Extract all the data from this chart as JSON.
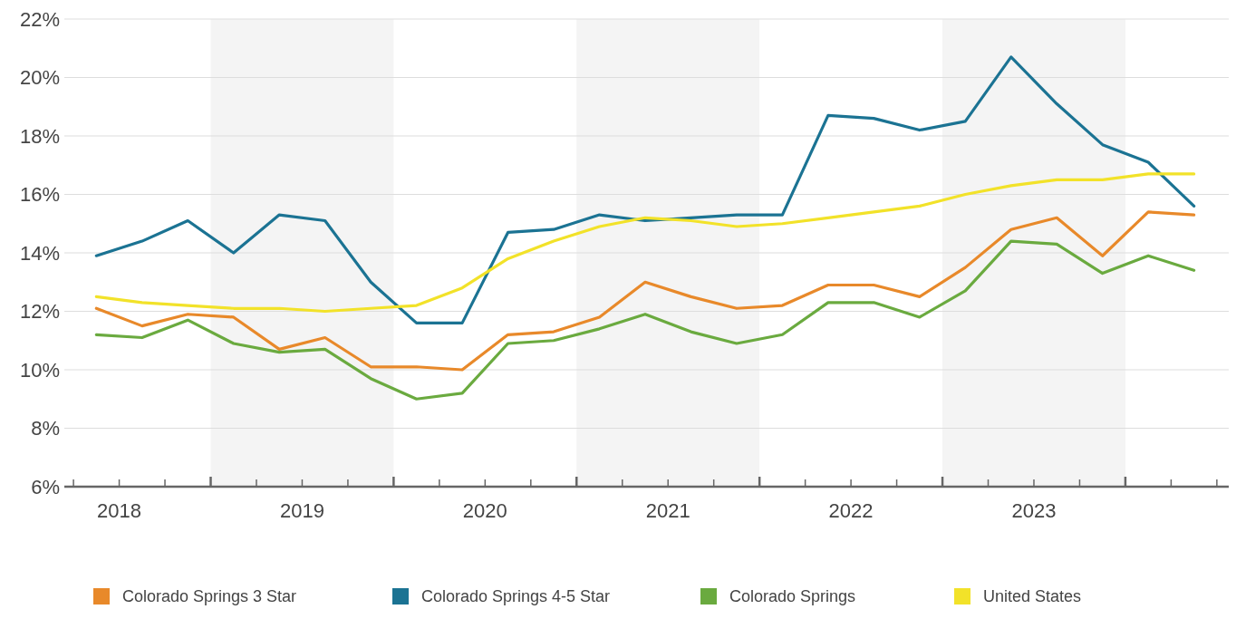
{
  "chart_data": {
    "type": "line",
    "x": [
      2018.375,
      2018.625,
      2018.875,
      2019.125,
      2019.375,
      2019.625,
      2019.875,
      2020.125,
      2020.375,
      2020.625,
      2020.875,
      2021.125,
      2021.375,
      2021.625,
      2021.875,
      2022.125,
      2022.375,
      2022.625,
      2022.875,
      2023.125,
      2023.375,
      2023.625,
      2023.875,
      2024.125,
      2024.375
    ],
    "series": [
      {
        "name": "Colorado Springs 3 Star",
        "color": "#e8892a",
        "values": [
          12.1,
          11.5,
          11.9,
          11.8,
          10.7,
          11.1,
          10.1,
          10.1,
          10.0,
          11.2,
          11.3,
          11.8,
          13.0,
          12.5,
          12.1,
          12.2,
          12.9,
          12.9,
          12.5,
          13.5,
          14.8,
          15.2,
          13.9,
          15.4,
          15.3
        ]
      },
      {
        "name": "Colorado Springs 4-5 Star",
        "color": "#1b7393",
        "values": [
          13.9,
          14.4,
          15.1,
          14.0,
          15.3,
          15.1,
          13.0,
          11.6,
          11.6,
          14.7,
          14.8,
          15.3,
          15.1,
          15.2,
          15.3,
          15.3,
          18.7,
          18.6,
          18.2,
          18.5,
          20.7,
          19.1,
          17.7,
          17.1,
          15.6
        ]
      },
      {
        "name": "Colorado Springs",
        "color": "#6aaa3f",
        "values": [
          11.2,
          11.1,
          11.7,
          10.9,
          10.6,
          10.7,
          9.7,
          9.0,
          9.2,
          10.9,
          11.0,
          11.4,
          11.9,
          11.3,
          10.9,
          11.2,
          12.3,
          12.3,
          11.8,
          12.7,
          14.4,
          14.3,
          13.3,
          13.9,
          13.4
        ]
      },
      {
        "name": "United States",
        "color": "#f2e229",
        "values": [
          12.5,
          12.3,
          12.2,
          12.1,
          12.1,
          12.0,
          12.1,
          12.2,
          12.8,
          13.8,
          14.4,
          14.9,
          15.2,
          15.1,
          14.9,
          15.0,
          15.2,
          15.4,
          15.6,
          16.0,
          16.3,
          16.5,
          16.5,
          16.7,
          16.7
        ]
      }
    ],
    "xlim": [
      2018.2,
      2024.57
    ],
    "xticks": [
      {
        "value": 2018.25,
        "label": null
      },
      {
        "value": 2018.5,
        "label": "2018"
      },
      {
        "value": 2018.75,
        "label": null
      },
      {
        "value": 2019,
        "label": null
      },
      {
        "value": 2019.25,
        "label": null
      },
      {
        "value": 2019.5,
        "label": "2019"
      },
      {
        "value": 2019.75,
        "label": null
      },
      {
        "value": 2020,
        "label": null
      },
      {
        "value": 2020.25,
        "label": null
      },
      {
        "value": 2020.5,
        "label": "2020"
      },
      {
        "value": 2020.75,
        "label": null
      },
      {
        "value": 2021,
        "label": null
      },
      {
        "value": 2021.25,
        "label": null
      },
      {
        "value": 2021.5,
        "label": "2021"
      },
      {
        "value": 2021.75,
        "label": null
      },
      {
        "value": 2022,
        "label": null
      },
      {
        "value": 2022.25,
        "label": null
      },
      {
        "value": 2022.5,
        "label": "2022"
      },
      {
        "value": 2022.75,
        "label": null
      },
      {
        "value": 2023,
        "label": null
      },
      {
        "value": 2023.25,
        "label": null
      },
      {
        "value": 2023.5,
        "label": "2023"
      },
      {
        "value": 2023.75,
        "label": null
      },
      {
        "value": 2024,
        "label": null
      },
      {
        "value": 2024.25,
        "label": null
      },
      {
        "value": 2024.5,
        "label": null
      }
    ],
    "ylim": [
      6,
      22
    ],
    "yticks": [
      {
        "value": 6,
        "label": "6%"
      },
      {
        "value": 8,
        "label": "8%"
      },
      {
        "value": 10,
        "label": "10%"
      },
      {
        "value": 12,
        "label": "12%"
      },
      {
        "value": 14,
        "label": "14%"
      },
      {
        "value": 16,
        "label": "16%"
      },
      {
        "value": 18,
        "label": "18%"
      },
      {
        "value": 20,
        "label": "20%"
      },
      {
        "value": 22,
        "label": "22%"
      }
    ],
    "bands": [
      {
        "axis": "x",
        "from": 2019,
        "to": 2020,
        "color": "#f4f4f4"
      },
      {
        "axis": "x",
        "from": 2021,
        "to": 2022,
        "color": "#f4f4f4"
      },
      {
        "axis": "x",
        "from": 2023,
        "to": 2024,
        "color": "#f4f4f4"
      }
    ],
    "grid": "y",
    "legend": "bottom",
    "marker": "none",
    "line_style": "solid"
  }
}
